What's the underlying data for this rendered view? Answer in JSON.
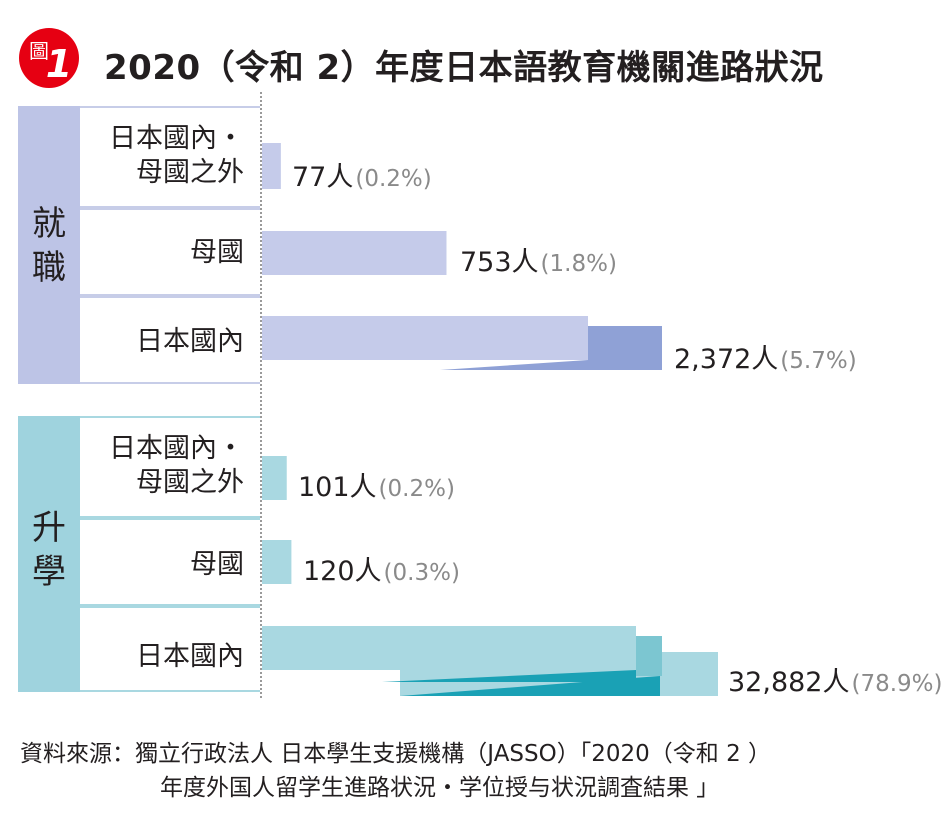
{
  "figure": {
    "badge_char": "圖",
    "badge_num": "1",
    "title": "2020（令和 2）年度日本語教育機關進路狀況"
  },
  "colors": {
    "badge_red": "#e60012",
    "employ_band": "#bdc4e6",
    "employ_bar": "#c5cbea",
    "employ_bar_dark": "#8fa1d6",
    "study_band": "#9fd3de",
    "study_bar": "#a9d8e1",
    "study_bar_dark": "#1aa1b5"
  },
  "groups": [
    {
      "label": "就職",
      "rows": [
        {
          "label_lines": [
            "日本國內・",
            "母國之外"
          ],
          "value": "77人",
          "pct": "(0.2%)"
        },
        {
          "label_lines": [
            "母國"
          ],
          "value": "753人",
          "pct": "(1.8%)"
        },
        {
          "label_lines": [
            "日本國內"
          ],
          "value": "2,372人",
          "pct": "(5.7%)"
        }
      ]
    },
    {
      "label": "升學",
      "rows": [
        {
          "label_lines": [
            "日本國內・",
            "母國之外"
          ],
          "value": "101人",
          "pct": "(0.2%)"
        },
        {
          "label_lines": [
            "母國"
          ],
          "value": "120人",
          "pct": "(0.3%)"
        },
        {
          "label_lines": [
            "日本國內"
          ],
          "value": "32,882人",
          "pct": "(78.9%)"
        }
      ]
    }
  ],
  "chart_data": {
    "type": "bar",
    "orientation": "horizontal",
    "title": "2020（令和 2）年度日本語教育機關進路狀況",
    "categories": [
      "就職 日本國內・母國之外",
      "就職 母國",
      "就職 日本國內",
      "升學 日本國內・母國之外",
      "升學 母國",
      "升學 日本國內"
    ],
    "values": [
      77,
      753,
      2372,
      101,
      120,
      32882
    ],
    "percent": [
      0.2,
      1.8,
      5.7,
      0.2,
      0.3,
      78.9
    ],
    "axis_break": true,
    "grid": false,
    "legend": "none"
  },
  "source": {
    "line1": "資料來源：獨立行政法人 日本學生支援機構（JASSO）「2020（令和 2 ）",
    "line2": "年度外国人留学生進路状況・学位授与状況調査結果 」"
  }
}
